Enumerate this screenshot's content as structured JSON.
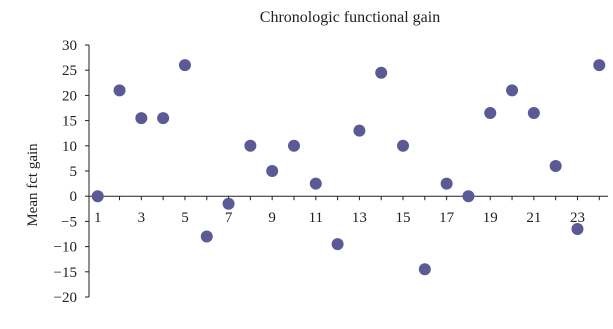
{
  "chart_data": {
    "type": "scatter",
    "title": "Chronologic functional gain",
    "xlabel": "",
    "ylabel": "Mean fct gain",
    "xlim": [
      0.6,
      24.4
    ],
    "ylim": [
      -20,
      30
    ],
    "y_ticks": [
      30,
      25,
      20,
      15,
      10,
      5,
      0,
      -5,
      -10,
      -15,
      -20
    ],
    "x_ticks": [
      1,
      3,
      5,
      7,
      9,
      11,
      13,
      15,
      17,
      19,
      21,
      23
    ],
    "grid": false,
    "legend": "none",
    "marker_color": "#5b5a96",
    "points": [
      {
        "x": 1,
        "y": 0
      },
      {
        "x": 2,
        "y": 21
      },
      {
        "x": 3,
        "y": 15.5
      },
      {
        "x": 4,
        "y": 15.5
      },
      {
        "x": 5,
        "y": 26
      },
      {
        "x": 6,
        "y": -8
      },
      {
        "x": 7,
        "y": -1.5
      },
      {
        "x": 8,
        "y": 10
      },
      {
        "x": 9,
        "y": 5
      },
      {
        "x": 10,
        "y": 10
      },
      {
        "x": 11,
        "y": 2.5
      },
      {
        "x": 12,
        "y": -9.5
      },
      {
        "x": 13,
        "y": 13
      },
      {
        "x": 14,
        "y": 24.5
      },
      {
        "x": 15,
        "y": 10
      },
      {
        "x": 16,
        "y": -14.5
      },
      {
        "x": 17,
        "y": 2.5
      },
      {
        "x": 18,
        "y": 0
      },
      {
        "x": 19,
        "y": 16.5
      },
      {
        "x": 20,
        "y": 21
      },
      {
        "x": 21,
        "y": 16.5
      },
      {
        "x": 22,
        "y": 6
      },
      {
        "x": 23,
        "y": -6.5
      },
      {
        "x": 24,
        "y": 26
      }
    ]
  }
}
